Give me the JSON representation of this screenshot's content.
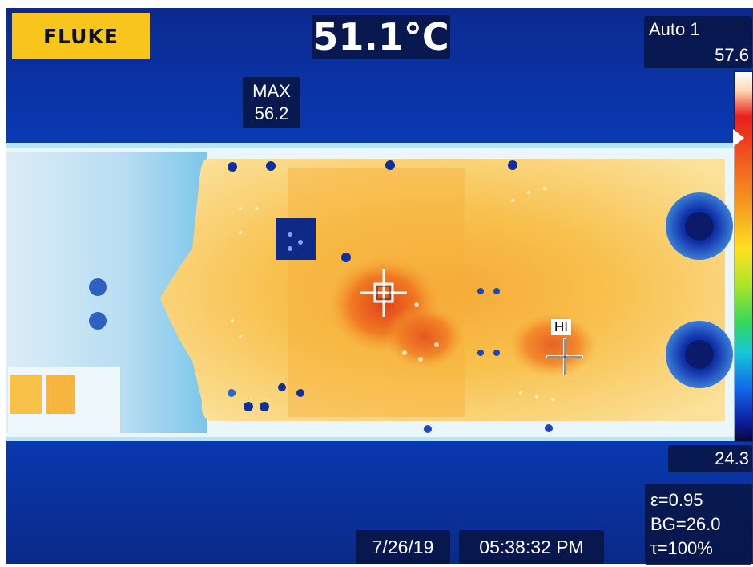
{
  "brand": {
    "logo_text": "FLUKE",
    "logo_color": "#f7c51b"
  },
  "center_point": {
    "temperature": "51.1°C"
  },
  "max_marker": {
    "label": "MAX",
    "value": "56.2"
  },
  "range": {
    "mode": "Auto 1",
    "high": "57.6",
    "low": "24.3"
  },
  "settings": {
    "emissivity": "ε=0.95",
    "background": "BG=26.0",
    "transmission": "τ=100%"
  },
  "capture": {
    "date": "7/26/19",
    "time": "05:38:32 PM"
  },
  "hot_spot": {
    "label": "HI"
  },
  "palette": {
    "background": "#0a2f9e",
    "board": "#f5c542",
    "hot": "#e8501d",
    "cold_edge": "#dff1fb"
  }
}
